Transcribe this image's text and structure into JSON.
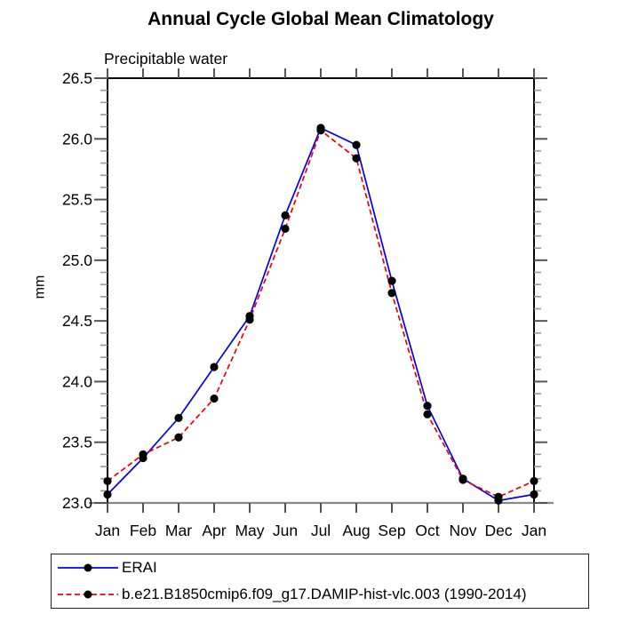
{
  "title": "Annual Cycle Global Mean Climatology",
  "subtitle": "Precipitable water",
  "chart_data": {
    "type": "line",
    "title": "Annual Cycle Global Mean Climatology",
    "subtitle": "Precipitable water",
    "ylabel": "mm",
    "xlabel": "",
    "ylim": [
      23.0,
      26.5
    ],
    "grid": false,
    "legend_position": "bottom-left-framed",
    "x_categories": [
      "Jan",
      "Feb",
      "Mar",
      "Apr",
      "May",
      "Jun",
      "Jul",
      "Aug",
      "Sep",
      "Oct",
      "Nov",
      "Dec",
      "Jan"
    ],
    "yticks": [
      {
        "value": 23.0,
        "label": "23.0"
      },
      {
        "value": 23.5,
        "label": "23.5"
      },
      {
        "value": 24.0,
        "label": "24.0"
      },
      {
        "value": 24.5,
        "label": "24.5"
      },
      {
        "value": 25.0,
        "label": "25.0"
      },
      {
        "value": 25.5,
        "label": "25.5"
      },
      {
        "value": 26.0,
        "label": "26.0"
      },
      {
        "value": 26.5,
        "label": "26.5"
      }
    ],
    "y_minor_step": 0.1,
    "series": [
      {
        "name": "ERAI",
        "line_style": "solid",
        "line_color": "#0000ee",
        "marker": "filled-circle",
        "marker_color": "#000000",
        "values": [
          23.07,
          23.37,
          23.7,
          24.12,
          24.54,
          25.37,
          26.09,
          25.95,
          24.83,
          23.8,
          23.2,
          23.02,
          23.07
        ]
      },
      {
        "name": "b.e21.B1850cmip6.f09_g17.DAMIP-hist-vlc.003 (1990-2014)",
        "line_style": "dashed",
        "line_color": "#ee0000",
        "marker": "filled-circle",
        "marker_color": "#000000",
        "values": [
          23.18,
          23.4,
          23.54,
          23.86,
          24.51,
          25.26,
          26.07,
          25.84,
          24.73,
          23.73,
          23.19,
          23.05,
          23.18
        ]
      }
    ],
    "colors": {
      "frame": "#000000",
      "bottom_axis": "#888888",
      "major_tick": "#555555",
      "minor_tick": "#999999"
    }
  }
}
